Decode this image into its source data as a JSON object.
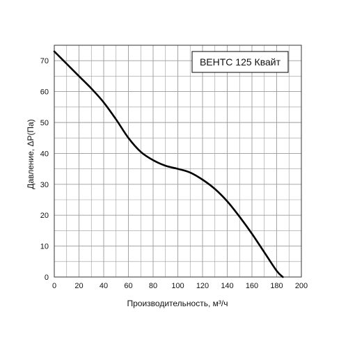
{
  "chart_data": {
    "type": "line",
    "legend_label": "ВЕНТС 125 Квайт",
    "legend_position": "top-right",
    "xlabel": "Производительность, м³/ч",
    "ylabel": "Давление, ΔР(Па)",
    "xlim": [
      0,
      200
    ],
    "ylim": [
      0,
      75
    ],
    "x_ticks": [
      0,
      20,
      40,
      60,
      80,
      100,
      120,
      140,
      160,
      180,
      200
    ],
    "y_ticks": [
      0,
      10,
      20,
      30,
      40,
      50,
      60,
      70
    ],
    "grid": true,
    "series": [
      {
        "name": "ВЕНТС 125 Квайт",
        "color": "#000000",
        "x": [
          0,
          10,
          20,
          30,
          40,
          50,
          60,
          70,
          80,
          90,
          100,
          110,
          120,
          130,
          140,
          150,
          160,
          170,
          180,
          185
        ],
        "y": [
          73,
          69,
          65,
          61,
          56.5,
          51,
          45,
          40.5,
          37.8,
          36,
          35,
          33.8,
          31.5,
          28.5,
          24.5,
          19.5,
          14,
          8,
          2,
          0
        ]
      }
    ]
  }
}
